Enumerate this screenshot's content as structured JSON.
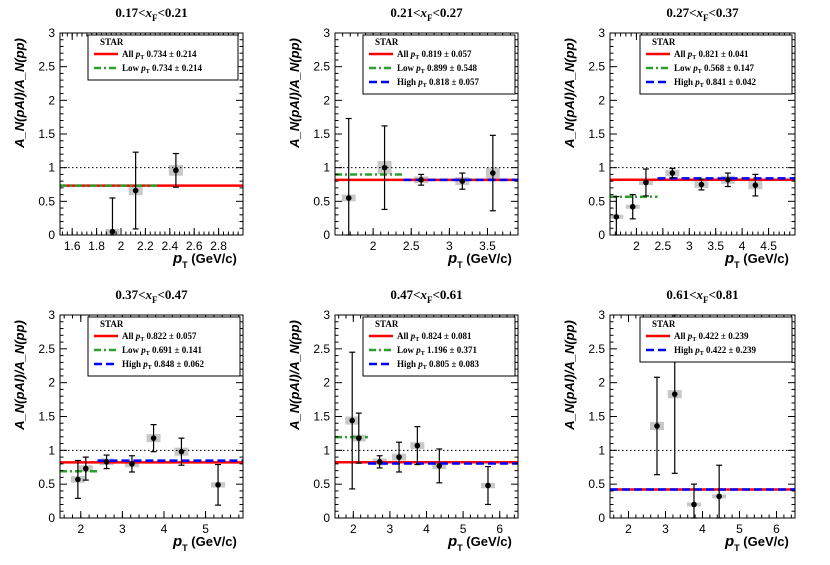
{
  "figure": {
    "xlabel_main": "p",
    "xlabel_sub": "T",
    "xlabel_unit": " (GeV/c)",
    "ylabel": "A_N(pAl)/A_N(pp)",
    "legend_header": "STAR"
  },
  "chart_data": [
    {
      "type": "scatter",
      "title": "0.17<x_F<0.21",
      "title_parts": [
        "0.17<",
        "x",
        "F",
        "<0.21"
      ],
      "xlim": [
        1.5,
        3.0
      ],
      "ylim": [
        0,
        3
      ],
      "xticks": [
        1.6,
        1.8,
        2.0,
        2.2,
        2.4,
        2.6,
        2.8
      ],
      "xtick_labels": [
        "1.6",
        "1.8",
        "2",
        "2.2",
        "2.4",
        "2.6",
        "2.8"
      ],
      "yticks": [
        0,
        0.5,
        1,
        1.5,
        2,
        2.5,
        3
      ],
      "ytick_labels": [
        "0",
        "0.5",
        "1",
        "1.5",
        "2",
        "2.5",
        "3"
      ],
      "reference_line": 1,
      "points": [
        {
          "x": 1.93,
          "y": 0.05,
          "err": 0.5,
          "sys": 0.04
        },
        {
          "x": 2.12,
          "y": 0.66,
          "err": 0.57,
          "sys": 0.07
        },
        {
          "x": 2.45,
          "y": 0.96,
          "err": 0.25,
          "sys": 0.08
        }
      ],
      "fits": [
        {
          "label": "All",
          "value_text": "0.734 ± 0.214",
          "value": 0.734,
          "x_range": "full",
          "color": "#ff0000",
          "style": "solid"
        },
        {
          "label": "Low",
          "value_text": "0.734 ± 0.214",
          "value": 0.734,
          "x_range": [
            1.5,
            2.3
          ],
          "color": "#2ca02c",
          "style": "dashdot"
        }
      ],
      "legend_pos": "top-right"
    },
    {
      "type": "scatter",
      "title": "0.21<x_F<0.27",
      "title_parts": [
        "0.21<",
        "x",
        "F",
        "<0.27"
      ],
      "xlim": [
        1.5,
        3.9
      ],
      "ylim": [
        0,
        3
      ],
      "xticks": [
        2,
        2.5,
        3,
        3.5
      ],
      "xtick_labels": [
        "2",
        "2.5",
        "3",
        "3.5"
      ],
      "yticks": [
        0,
        0.5,
        1,
        1.5,
        2,
        2.5,
        3
      ],
      "ytick_labels": [
        "0",
        "0.5",
        "1",
        "1.5",
        "2",
        "2.5",
        "3"
      ],
      "reference_line": 1,
      "points": [
        {
          "x": 1.68,
          "y": 0.55,
          "err": 1.18,
          "sys": 0.05
        },
        {
          "x": 2.15,
          "y": 1.0,
          "err": 0.62,
          "sys": 0.1
        },
        {
          "x": 2.63,
          "y": 0.82,
          "err": 0.08,
          "sys": 0.05
        },
        {
          "x": 3.17,
          "y": 0.8,
          "err": 0.12,
          "sys": 0.06
        },
        {
          "x": 3.57,
          "y": 0.92,
          "err": 0.56,
          "sys": 0.08
        }
      ],
      "fits": [
        {
          "label": "All",
          "value_text": "0.819 ± 0.057",
          "value": 0.819,
          "x_range": "full",
          "color": "#ff0000",
          "style": "solid"
        },
        {
          "label": "Low",
          "value_text": "0.899 ± 0.548",
          "value": 0.899,
          "x_range": [
            1.5,
            2.4
          ],
          "color": "#2ca02c",
          "style": "dashdot"
        },
        {
          "label": "High",
          "value_text": "0.818 ± 0.057",
          "value": 0.818,
          "x_range": [
            2.4,
            3.9
          ],
          "color": "#0000ff",
          "style": "dashed"
        }
      ],
      "legend_pos": "top-right"
    },
    {
      "type": "scatter",
      "title": "0.27<x_F<0.37",
      "title_parts": [
        "0.27<",
        "x",
        "F",
        "<0.37"
      ],
      "xlim": [
        1.5,
        5.0
      ],
      "ylim": [
        0,
        3
      ],
      "xticks": [
        2,
        2.5,
        3,
        3.5,
        4,
        4.5
      ],
      "xtick_labels": [
        "2",
        "2.5",
        "3",
        "3.5",
        "4",
        "4.5"
      ],
      "yticks": [
        0,
        0.5,
        1,
        1.5,
        2,
        2.5,
        3
      ],
      "ytick_labels": [
        "0",
        "0.5",
        "1",
        "1.5",
        "2",
        "2.5",
        "3"
      ],
      "reference_line": 1,
      "points": [
        {
          "x": 1.62,
          "y": 0.27,
          "err": 0.3,
          "sys": 0.03
        },
        {
          "x": 1.93,
          "y": 0.42,
          "err": 0.18,
          "sys": 0.03
        },
        {
          "x": 2.18,
          "y": 0.78,
          "err": 0.2,
          "sys": 0.04
        },
        {
          "x": 2.68,
          "y": 0.92,
          "err": 0.07,
          "sys": 0.05
        },
        {
          "x": 3.23,
          "y": 0.75,
          "err": 0.08,
          "sys": 0.05
        },
        {
          "x": 3.73,
          "y": 0.82,
          "err": 0.1,
          "sys": 0.06
        },
        {
          "x": 4.25,
          "y": 0.74,
          "err": 0.16,
          "sys": 0.06
        }
      ],
      "fits": [
        {
          "label": "All",
          "value_text": "0.821 ± 0.041",
          "value": 0.821,
          "x_range": "full",
          "color": "#ff0000",
          "style": "solid"
        },
        {
          "label": "Low",
          "value_text": "0.568 ± 0.147",
          "value": 0.568,
          "x_range": [
            1.5,
            2.4
          ],
          "color": "#2ca02c",
          "style": "dashdot"
        },
        {
          "label": "High",
          "value_text": "0.841 ± 0.042",
          "value": 0.841,
          "x_range": [
            2.4,
            5.0
          ],
          "color": "#0000ff",
          "style": "dashed"
        }
      ],
      "legend_pos": "top-right"
    },
    {
      "type": "scatter",
      "title": "0.37<x_F<0.47",
      "title_parts": [
        "0.37<",
        "x",
        "F",
        "<0.47"
      ],
      "xlim": [
        1.5,
        5.9
      ],
      "ylim": [
        0,
        3
      ],
      "xticks": [
        2,
        3,
        4,
        5
      ],
      "xtick_labels": [
        "2",
        "3",
        "4",
        "5"
      ],
      "yticks": [
        0,
        0.5,
        1,
        1.5,
        2,
        2.5,
        3
      ],
      "ytick_labels": [
        "0",
        "0.5",
        "1",
        "1.5",
        "2",
        "2.5",
        "3"
      ],
      "reference_line": 1,
      "points": [
        {
          "x": 1.93,
          "y": 0.57,
          "err": 0.28,
          "sys": 0.05
        },
        {
          "x": 2.12,
          "y": 0.73,
          "err": 0.17,
          "sys": 0.05
        },
        {
          "x": 2.62,
          "y": 0.83,
          "err": 0.1,
          "sys": 0.05
        },
        {
          "x": 3.23,
          "y": 0.8,
          "err": 0.12,
          "sys": 0.05
        },
        {
          "x": 3.75,
          "y": 1.18,
          "err": 0.2,
          "sys": 0.06
        },
        {
          "x": 4.42,
          "y": 0.98,
          "err": 0.2,
          "sys": 0.06
        },
        {
          "x": 5.3,
          "y": 0.49,
          "err": 0.3,
          "sys": 0.04
        }
      ],
      "fits": [
        {
          "label": "All",
          "value_text": "0.822 ± 0.057",
          "value": 0.822,
          "x_range": "full",
          "color": "#ff0000",
          "style": "solid"
        },
        {
          "label": "Low",
          "value_text": "0.691 ± 0.141",
          "value": 0.691,
          "x_range": [
            1.5,
            2.4
          ],
          "color": "#2ca02c",
          "style": "dashdot"
        },
        {
          "label": "High",
          "value_text": "0.848 ± 0.062",
          "value": 0.848,
          "x_range": [
            2.4,
            5.9
          ],
          "color": "#0000ff",
          "style": "dashed"
        }
      ],
      "legend_pos": "top-right"
    },
    {
      "type": "scatter",
      "title": "0.47<x_F<0.61",
      "title_parts": [
        "0.47<",
        "x",
        "F",
        "<0.61"
      ],
      "xlim": [
        1.5,
        6.5
      ],
      "ylim": [
        0,
        3
      ],
      "xticks": [
        2,
        3,
        4,
        5,
        6
      ],
      "xtick_labels": [
        "2",
        "3",
        "4",
        "5",
        "6"
      ],
      "yticks": [
        0,
        0.5,
        1,
        1.5,
        2,
        2.5,
        3
      ],
      "ytick_labels": [
        "0",
        "0.5",
        "1",
        "1.5",
        "2",
        "2.5",
        "3"
      ],
      "reference_line": 1,
      "points": [
        {
          "x": 1.97,
          "y": 1.44,
          "err": 1.01,
          "sys": 0.06
        },
        {
          "x": 2.15,
          "y": 1.18,
          "err": 0.37,
          "sys": 0.05
        },
        {
          "x": 2.72,
          "y": 0.83,
          "err": 0.09,
          "sys": 0.05
        },
        {
          "x": 3.25,
          "y": 0.9,
          "err": 0.22,
          "sys": 0.05
        },
        {
          "x": 3.75,
          "y": 1.07,
          "err": 0.28,
          "sys": 0.05
        },
        {
          "x": 4.35,
          "y": 0.77,
          "err": 0.25,
          "sys": 0.05
        },
        {
          "x": 5.68,
          "y": 0.48,
          "err": 0.28,
          "sys": 0.04
        }
      ],
      "fits": [
        {
          "label": "All",
          "value_text": "0.824 ± 0.081",
          "value": 0.824,
          "x_range": "full",
          "color": "#ff0000",
          "style": "solid"
        },
        {
          "label": "Low",
          "value_text": "1.196 ± 0.371",
          "value": 1.196,
          "x_range": [
            1.5,
            2.4
          ],
          "color": "#2ca02c",
          "style": "dashdot"
        },
        {
          "label": "High",
          "value_text": "0.805 ± 0.083",
          "value": 0.805,
          "x_range": [
            2.4,
            6.5
          ],
          "color": "#0000ff",
          "style": "dashed"
        }
      ],
      "legend_pos": "top-right"
    },
    {
      "type": "scatter",
      "title": "0.61<x_F<0.81",
      "title_parts": [
        "0.61<",
        "x",
        "F",
        "<0.81"
      ],
      "xlim": [
        1.5,
        6.5
      ],
      "ylim": [
        0,
        3
      ],
      "xticks": [
        2,
        3,
        4,
        5,
        6
      ],
      "xtick_labels": [
        "2",
        "3",
        "4",
        "5",
        "6"
      ],
      "yticks": [
        0,
        0.5,
        1,
        1.5,
        2,
        2.5,
        3
      ],
      "ytick_labels": [
        "0",
        "0.5",
        "1",
        "1.5",
        "2",
        "2.5",
        "3"
      ],
      "reference_line": 1,
      "points": [
        {
          "x": 2.77,
          "y": 1.36,
          "err": 0.72,
          "sys": 0.06
        },
        {
          "x": 3.25,
          "y": 1.83,
          "err": 1.17,
          "sys": 0.06
        },
        {
          "x": 3.77,
          "y": 0.2,
          "err": 0.3,
          "sys": 0.03
        },
        {
          "x": 4.45,
          "y": 0.32,
          "err": 0.46,
          "sys": 0.03
        }
      ],
      "fits": [
        {
          "label": "All",
          "value_text": "0.422 ± 0.239",
          "value": 0.422,
          "x_range": "full",
          "color": "#ff0000",
          "style": "solid"
        },
        {
          "label": "High",
          "value_text": "0.422 ± 0.239",
          "value": 0.422,
          "x_range": "full",
          "color": "#0000ff",
          "style": "dashed"
        }
      ],
      "legend_pos": "top-right"
    }
  ]
}
